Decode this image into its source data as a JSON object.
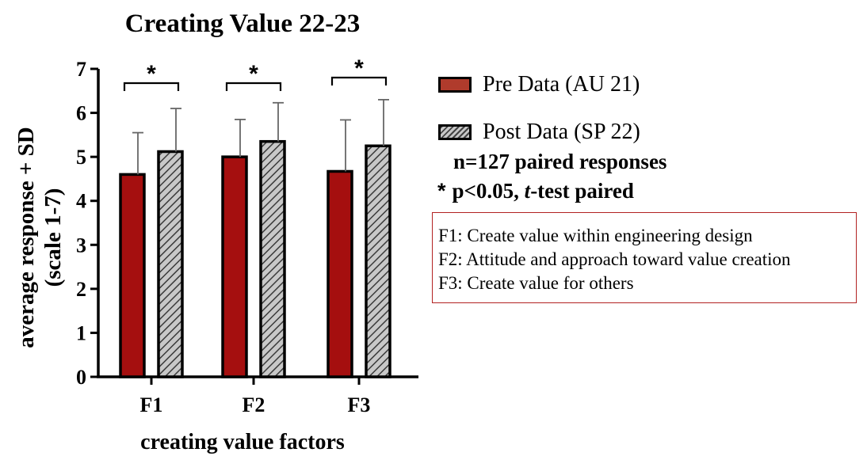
{
  "chart_data": {
    "type": "bar",
    "title": "Creating Value 22-23",
    "xlabel": "creating value factors",
    "ylabel": [
      "average response + SD",
      "(scale 1-7)"
    ],
    "ylim": [
      0,
      7
    ],
    "yticks": [
      0,
      1,
      2,
      3,
      4,
      5,
      6,
      7
    ],
    "categories": [
      "F1",
      "F2",
      "F3"
    ],
    "series": [
      {
        "name": "Pre Data (AU 21)",
        "values": [
          4.6,
          5.0,
          4.67
        ],
        "sd": [
          0.95,
          0.85,
          1.17
        ],
        "color": "#a50f0f"
      },
      {
        "name": "Post Data (SP 22)",
        "values": [
          5.12,
          5.35,
          5.25
        ],
        "sd": [
          0.98,
          0.88,
          1.05
        ],
        "color": "#b5b5b5",
        "pattern": "diagonal-hatch"
      }
    ],
    "significance": [
      "*",
      "*",
      "*"
    ],
    "grid": false,
    "legend_position": "right"
  },
  "legend": {
    "pre_label": "Pre Data (AU 21)",
    "post_label": "Post Data (SP 22)"
  },
  "notes": {
    "n_text": "n=127 paired responses",
    "p_star": "*",
    "p_text_a": "p<0.05, ",
    "p_text_italic": "t",
    "p_text_b": "-test paired"
  },
  "factors": [
    "F1: Create value within engineering design",
    "F2: Attitude and approach toward value creation",
    "F3: Create value for others"
  ]
}
